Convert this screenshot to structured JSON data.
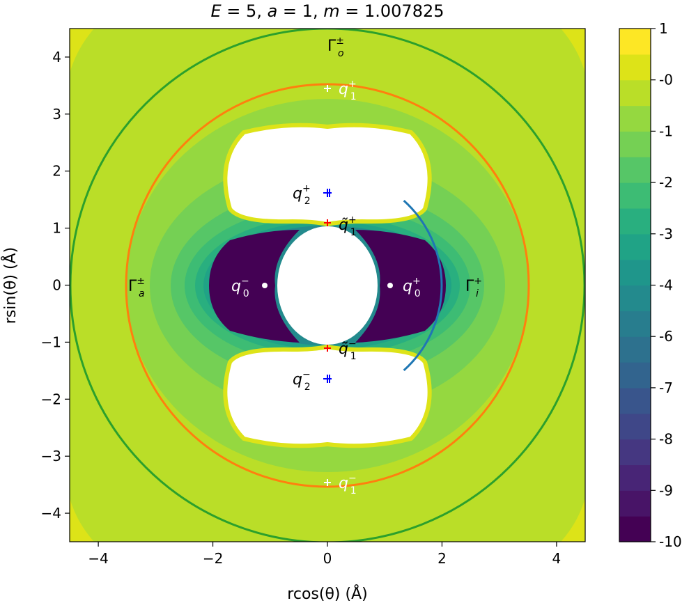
{
  "chart_data": {
    "type": "heatmap",
    "title": "E = 5, a = 1, m = 1.007825",
    "title_parts": {
      "E": "5",
      "a": "1",
      "m": "1.007825"
    },
    "xlabel": "rcos(θ) (Å)",
    "ylabel": "rsin(θ) (Å)",
    "xlim": [
      -4.5,
      4.5
    ],
    "ylim": [
      -4.5,
      4.5
    ],
    "xticks": [
      -4,
      -2,
      0,
      2,
      4
    ],
    "yticks": [
      -4,
      -3,
      -2,
      -1,
      0,
      1,
      2,
      3,
      4
    ],
    "colorbar": {
      "tick_labels": [
        "1",
        "-0",
        "-1",
        "-2",
        "-3",
        "-4",
        "-6",
        "-7",
        "-8",
        "-9",
        "-10"
      ],
      "levels": 21,
      "colors": [
        "#440154",
        "#481467",
        "#482576",
        "#453781",
        "#3f4788",
        "#39558c",
        "#32648e",
        "#2d718e",
        "#287d8e",
        "#238a8d",
        "#1f968b",
        "#20a386",
        "#29af7f",
        "#3dbc74",
        "#56c667",
        "#75d054",
        "#95d840",
        "#bade28",
        "#dde318",
        "#fde725"
      ]
    },
    "circles": [
      {
        "name": "Γ_a± (orange)",
        "radius": 3.5,
        "color": "#ff7f0e"
      },
      {
        "name": "Γ_o± (green)",
        "radius": 4.5,
        "color": "#2ca02c"
      }
    ],
    "arc": {
      "name": "Γ_i+",
      "radius": 2.0,
      "theta_deg": [
        -48,
        48
      ],
      "color": "#1f77b4"
    },
    "points": [
      {
        "label": "q1+",
        "x": 0,
        "y": 3.45,
        "marker": "+",
        "color": "#ffffff"
      },
      {
        "label": "q1−",
        "x": 0,
        "y": -3.45,
        "marker": "+",
        "color": "#ffffff"
      },
      {
        "label": "q2+",
        "x": 0,
        "y": 1.62,
        "marker": "+",
        "color": "#0000ff"
      },
      {
        "label": "q2−",
        "x": 0,
        "y": -1.62,
        "marker": "+",
        "color": "#0000ff"
      },
      {
        "label": "q̃1+",
        "x": 0,
        "y": 1.1,
        "marker": "+",
        "color": "#ff0000"
      },
      {
        "label": "q̃1−",
        "x": 0,
        "y": -1.1,
        "marker": "+",
        "color": "#ff0000"
      },
      {
        "label": "q0+",
        "x": 1.1,
        "y": 0,
        "marker": "o",
        "color": "#ffffff"
      },
      {
        "label": "q0−",
        "x": -1.1,
        "y": 0,
        "marker": "o",
        "color": "#ffffff"
      }
    ],
    "region_labels": [
      "Γo±",
      "Γa±",
      "Γi+"
    ]
  },
  "colors": {
    "background_level": "#bade28",
    "orange": "#ff7f0e",
    "green": "#2ca02c",
    "blue": "#1f77b4"
  }
}
